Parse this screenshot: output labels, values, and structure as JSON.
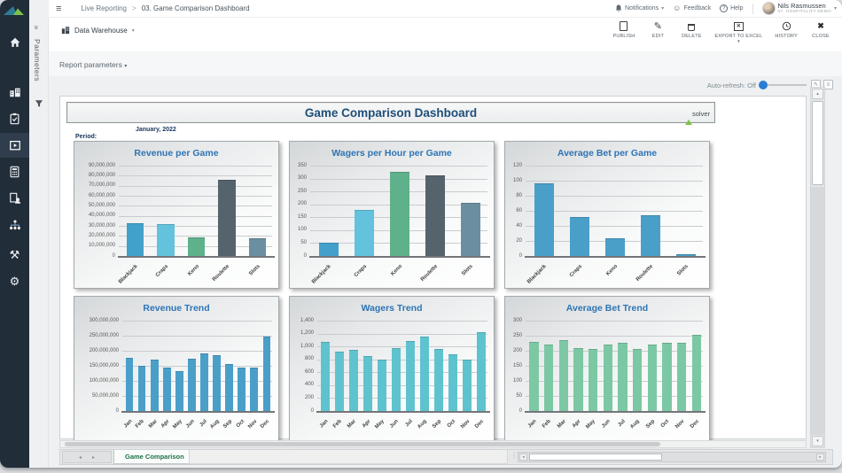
{
  "topbar": {
    "breadcrumb": {
      "section": "Live Reporting",
      "separator": ">",
      "page": "03. Game Comparison Dashboard"
    },
    "notifications_label": "Notifications",
    "feedback_label": "Feedback",
    "help_label": "Help",
    "user": {
      "name": "Nils Rasmussen",
      "subtitle": "07. Hospitality Demo"
    }
  },
  "actionbar": {
    "datasource": "Data Warehouse",
    "actions": [
      {
        "label": "PUBLISH",
        "icon": "publish-page-icon"
      },
      {
        "label": "EDIT",
        "icon": "edit-pencil-icon"
      },
      {
        "label": "DELETE",
        "icon": "trash-icon"
      },
      {
        "label": "EXPORT TO EXCEL",
        "icon": "excel-icon"
      },
      {
        "label": "HISTORY",
        "icon": "history-clock-icon"
      },
      {
        "label": "CLOSE",
        "icon": "close-x-icon"
      }
    ]
  },
  "filters": {
    "report_parameters": "Report parameters",
    "auto_refresh": "Auto-refresh: Off"
  },
  "rail": {
    "label": "Parameters"
  },
  "sidebar": {
    "items": [
      "solver-logo",
      "home-icon",
      "warehouse-icon",
      "checklist-icon",
      "reports-icon (active)",
      "calculator-icon",
      "document-user-icon",
      "workflow-icon",
      "tools-icon",
      "settings-gear-icon"
    ]
  },
  "report": {
    "title": "Game Comparison Dashboard",
    "logo_text": "solver",
    "period_label": "Period:",
    "period_value": "January, 2022"
  },
  "tabs": {
    "active": "Game Comparison"
  },
  "icons": {
    "hamburger": "≡",
    "chevron_down": "▾",
    "rail_collapse": "»",
    "question": "?",
    "smiley": "☺",
    "edit": "✎",
    "close": "✖",
    "excel_x": "✕",
    "gear": "⚙",
    "tools": "⚒",
    "dots": "⋮",
    "arrow_left": "◂",
    "arrow_right": "▸",
    "arrow_up": "▴",
    "arrow_down": "▾"
  },
  "colors": {
    "accent_blue": "#2b7cd3",
    "title_navy": "#1f4e79",
    "chart_title_blue": "#2e74b5",
    "tab_green": "#1e7145",
    "sidebar_navy": "#222d3a"
  },
  "chart_data": [
    {
      "type": "bar",
      "title": "Revenue per Game",
      "categories": [
        "Blackjack",
        "Craps",
        "Keno",
        "Roulette",
        "Slots"
      ],
      "values": [
        33000000,
        31500000,
        18800000,
        76000000,
        17600000
      ],
      "ylim": [
        0,
        90000000
      ],
      "ytick_step": 10000000,
      "bar_colors": [
        "#42a0cb",
        "#63c2dc",
        "#5eb18b",
        "#55636d",
        "#6b8fa1"
      ],
      "grid": true,
      "legend": "none"
    },
    {
      "type": "bar",
      "title": "Wagers per Hour per Game",
      "categories": [
        "Blackjack",
        "Craps",
        "Keno",
        "Roulette",
        "Slots"
      ],
      "values": [
        50,
        180,
        325,
        311,
        205
      ],
      "ylim": [
        0,
        350
      ],
      "ytick_step": 50,
      "bar_colors": [
        "#42a0cb",
        "#63c2dc",
        "#5eb18b",
        "#55636d",
        "#6b8fa1"
      ],
      "grid": true,
      "legend": "none"
    },
    {
      "type": "bar",
      "title": "Average Bet per Game",
      "categories": [
        "Blackjack",
        "Craps",
        "Keno",
        "Roulette",
        "Slots"
      ],
      "values": [
        97,
        52,
        24,
        54,
        2
      ],
      "ylim": [
        0,
        120
      ],
      "ytick_step": 20,
      "bar_color": "#4a9fc9",
      "grid": true,
      "legend": "none"
    },
    {
      "type": "bar",
      "title": "Revenue Trend",
      "categories": [
        "Jan",
        "Feb",
        "Mar",
        "Apr",
        "May",
        "Jun",
        "Jul",
        "Aug",
        "Sep",
        "Oct",
        "Nov",
        "Dec"
      ],
      "values": [
        177000000,
        149000000,
        170000000,
        143000000,
        133000000,
        174000000,
        192000000,
        184000000,
        156000000,
        145000000,
        144000000,
        248000000
      ],
      "ylim": [
        0,
        300000000
      ],
      "ytick_step": 50000000,
      "bar_color": "#4a9fc9",
      "grid": true,
      "legend": "none"
    },
    {
      "type": "bar",
      "title": "Wagers Trend",
      "categories": [
        "Jan",
        "Feb",
        "Mar",
        "Apr",
        "May",
        "Jun",
        "Jul",
        "Aug",
        "Sep",
        "Oct",
        "Nov",
        "Dec"
      ],
      "values": [
        1075,
        920,
        945,
        850,
        795,
        970,
        1090,
        1155,
        960,
        875,
        800,
        1225
      ],
      "ylim": [
        0,
        1400
      ],
      "ytick_step": 200,
      "bar_color": "#5fc3cf",
      "grid": true,
      "legend": "none"
    },
    {
      "type": "bar",
      "title": "Average Bet Trend",
      "categories": [
        "Jan",
        "Feb",
        "Mar",
        "Apr",
        "May",
        "Jun",
        "Jul",
        "Aug",
        "Sep",
        "Oct",
        "Nov",
        "Dec"
      ],
      "values": [
        230,
        222,
        235,
        210,
        207,
        222,
        226,
        206,
        221,
        227,
        226,
        253
      ],
      "ylim": [
        0,
        300
      ],
      "ytick_step": 50,
      "bar_color": "#7cc8a4",
      "grid": true,
      "legend": "none"
    }
  ]
}
